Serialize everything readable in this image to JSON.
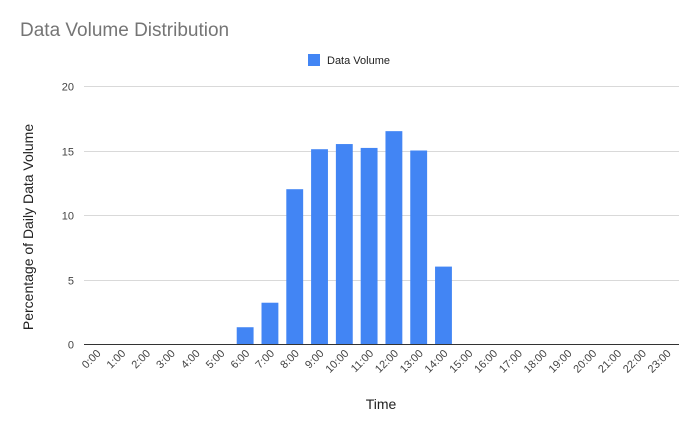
{
  "chart_data": {
    "type": "bar",
    "title": "Data Volume Distribution",
    "xlabel": "Time",
    "ylabel": "Percentage of Daily Data Volume",
    "ylim": [
      0,
      20
    ],
    "yticks": [
      0,
      5,
      10,
      15,
      20
    ],
    "grid": true,
    "legend_position": "top-center",
    "categories": [
      "0:00",
      "1:00",
      "2:00",
      "3:00",
      "4:00",
      "5:00",
      "6:00",
      "7:00",
      "8:00",
      "9:00",
      "10:00",
      "11:00",
      "12:00",
      "13:00",
      "14:00",
      "15:00",
      "16:00",
      "17:00",
      "18:00",
      "19:00",
      "20:00",
      "21:00",
      "22:00",
      "23:00"
    ],
    "series": [
      {
        "name": "Data Volume",
        "color": "#4285f4",
        "values": [
          0,
          0,
          0,
          0,
          0,
          0,
          1.3,
          3.2,
          12.0,
          15.1,
          15.5,
          15.2,
          16.5,
          15.0,
          6.0,
          0,
          0,
          0,
          0,
          0,
          0,
          0,
          0,
          0
        ]
      }
    ]
  }
}
